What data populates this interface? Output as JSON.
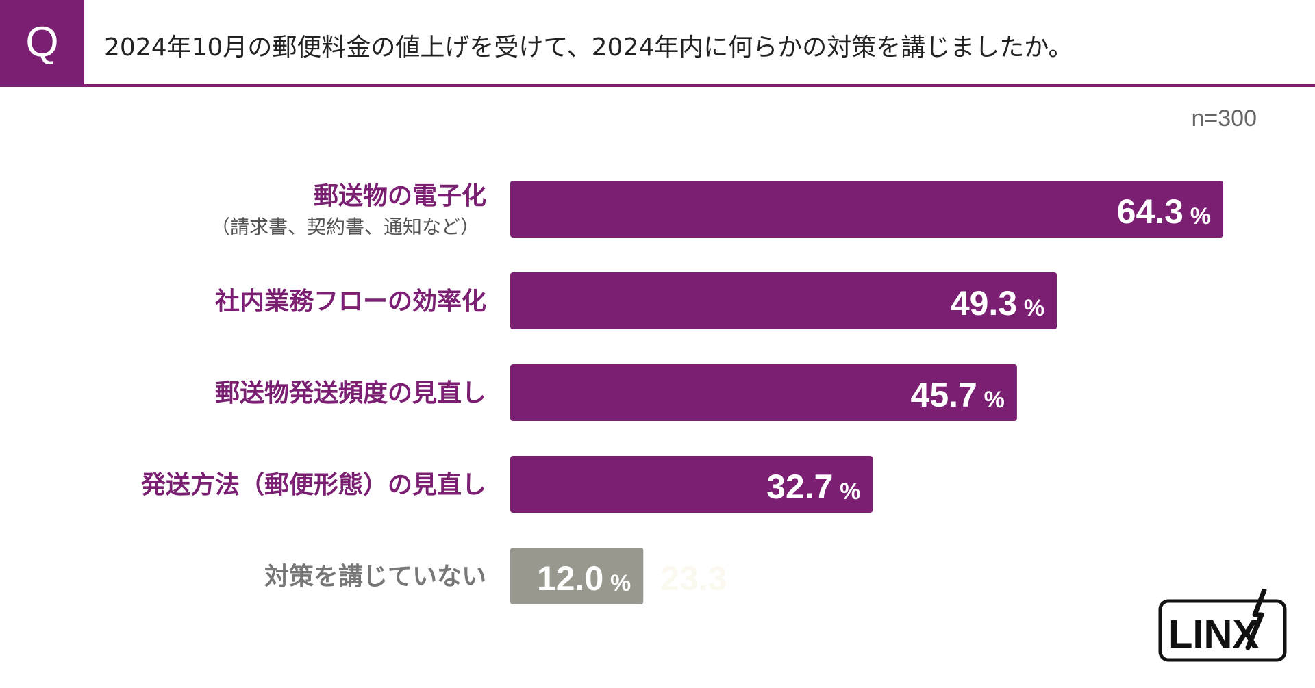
{
  "header": {
    "q_label": "Q",
    "question": "2024年10月の郵便料金の値上げを受けて、2024年内に何らかの対策を講じましたか。"
  },
  "sample": "n=300",
  "logo_text": "LINX",
  "colors": {
    "accent": "#7b1f72",
    "gray": "#98988f",
    "label_gray": "#777777"
  },
  "chart_data": {
    "type": "bar",
    "orientation": "horizontal",
    "categories": [
      "郵送物の電子化",
      "社内業務フローの効率化",
      "郵送物発送頻度の見直し",
      "発送方法（郵便形態）の見直し",
      "対策を講じていない"
    ],
    "category_notes": [
      "（請求書、契約書、通知など）",
      "",
      "",
      "",
      ""
    ],
    "values": [
      64.3,
      49.3,
      45.7,
      32.7,
      12.0
    ],
    "value_labels": [
      "64.3",
      "49.3",
      "45.7",
      "32.7",
      "12.0"
    ],
    "unit": "%",
    "highlight": [
      true,
      true,
      true,
      true,
      false
    ],
    "extra_text": "23.3",
    "title": "",
    "xlabel": "",
    "ylabel": "",
    "xlim": [
      0,
      64.3
    ],
    "grid": false,
    "legend": "none"
  }
}
